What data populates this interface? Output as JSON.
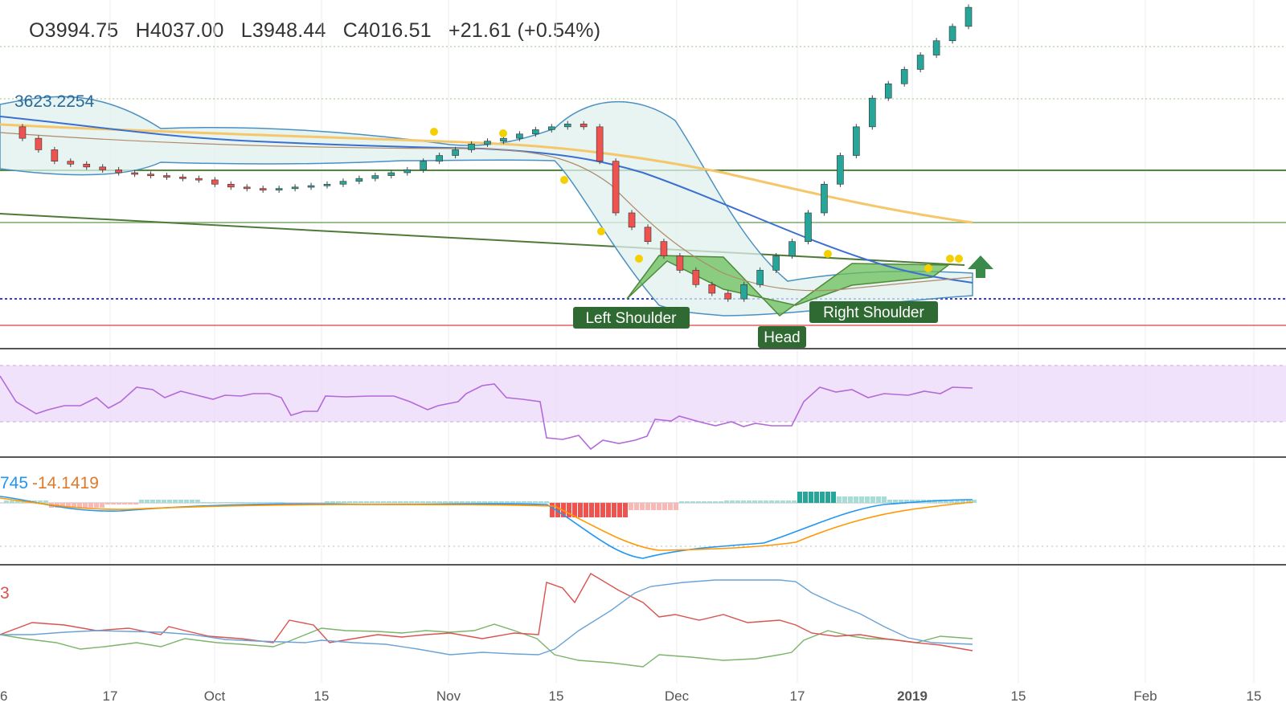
{
  "ohlc": {
    "open": "O3994.75",
    "high": "H4037.00",
    "low": "L3948.44",
    "close": "C4016.51",
    "change": "+21.61 (+0.54%)"
  },
  "indicators": {
    "bb_value": "3623.2254",
    "macd_value_partial": "745",
    "macd_signal": "-14.1419",
    "dmi_partial": "3"
  },
  "patterns": {
    "left_shoulder": "Left Shoulder",
    "head": "Head",
    "right_shoulder": "Right Shoulder"
  },
  "colors": {
    "up": "#26a69a",
    "down": "#ef5350",
    "bb": "#4a90c2",
    "ma_slow": "#f5c76a",
    "ma_mid": "#3b6fd1",
    "pattern": "#5aa64a",
    "rsi": "#b36ad8",
    "macd": "#2196f3",
    "signal": "#ff9800"
  },
  "chart_data": {
    "type": "candlestick",
    "x_axis_ticks": [
      "6",
      "17",
      "Oct",
      "15",
      "Nov",
      "15",
      "Dec",
      "17",
      "2019",
      "15",
      "Feb",
      "15"
    ],
    "price_series": [
      3600,
      3560,
      3520,
      3480,
      3470,
      3460,
      3450,
      3440,
      3435,
      3430,
      3425,
      3420,
      3415,
      3400,
      3390,
      3385,
      3380,
      3385,
      3390,
      3395,
      3400,
      3410,
      3420,
      3430,
      3440,
      3450,
      3480,
      3500,
      3520,
      3540,
      3550,
      3560,
      3575,
      3590,
      3600,
      3610,
      3600,
      3480,
      3300,
      3250,
      3200,
      3150,
      3100,
      3050,
      3020,
      3000,
      3050,
      3100,
      3150,
      3200,
      3300,
      3400,
      3500,
      3600,
      3700,
      3750,
      3800,
      3850,
      3900,
      3950,
      4016.51
    ],
    "series": [
      {
        "name": "Price",
        "values": [
          3600,
          3480,
          3420,
          3385,
          3400,
          3440,
          3520,
          3575,
          3610,
          3300,
          3100,
          3000,
          3150,
          3500,
          3750,
          3950,
          4016.51
        ]
      }
    ],
    "annotations": [
      "Left Shoulder",
      "Head",
      "Right Shoulder"
    ],
    "panels": [
      "price",
      "rsi",
      "macd",
      "dmi"
    ]
  }
}
